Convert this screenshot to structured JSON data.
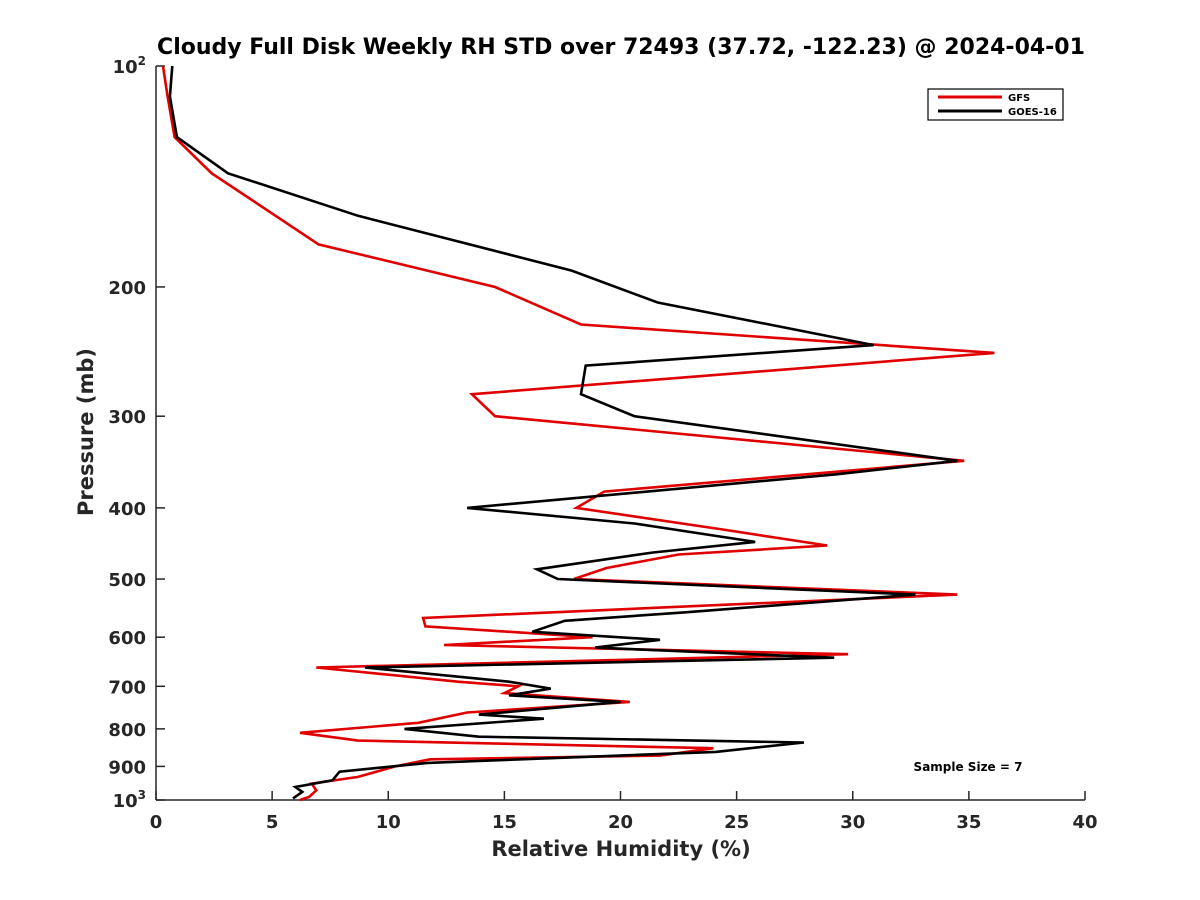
{
  "chart_data": {
    "type": "line",
    "title": "Cloudy Full Disk Weekly RH STD over 72493 (37.72, -122.23) @ 2024-04-01",
    "xlabel": "Relative Humidity (%)",
    "ylabel": "Pressure (mb)",
    "xlim": [
      0,
      40
    ],
    "ylim": [
      100,
      1000
    ],
    "yscale": "log",
    "y_reversed": true,
    "grid": false,
    "legend_position": "top-right",
    "annotation": "Sample Size = 7",
    "x_ticks": [
      {
        "value": 0,
        "label": "0"
      },
      {
        "value": 5,
        "label": "5"
      },
      {
        "value": 10,
        "label": "10"
      },
      {
        "value": 15,
        "label": "15"
      },
      {
        "value": 20,
        "label": "20"
      },
      {
        "value": 25,
        "label": "25"
      },
      {
        "value": 30,
        "label": "30"
      },
      {
        "value": 35,
        "label": "35"
      },
      {
        "value": 40,
        "label": "40"
      }
    ],
    "y_ticks": [
      {
        "value": 100,
        "base": "10",
        "sup": "2"
      },
      {
        "value": 200,
        "base": "200",
        "sup": ""
      },
      {
        "value": 300,
        "base": "300",
        "sup": ""
      },
      {
        "value": 400,
        "base": "400",
        "sup": ""
      },
      {
        "value": 500,
        "base": "500",
        "sup": ""
      },
      {
        "value": 600,
        "base": "600",
        "sup": ""
      },
      {
        "value": 700,
        "base": "700",
        "sup": ""
      },
      {
        "value": 800,
        "base": "800",
        "sup": ""
      },
      {
        "value": 900,
        "base": "900",
        "sup": ""
      },
      {
        "value": 1000,
        "base": "10",
        "sup": "3"
      }
    ],
    "series": [
      {
        "name": "GFS",
        "color": "#e00000",
        "points": [
          [
            0.3,
            100
          ],
          [
            0.5,
            110
          ],
          [
            0.8,
            125
          ],
          [
            2.4,
            140
          ],
          [
            7.0,
            175
          ],
          [
            14.6,
            200
          ],
          [
            18.3,
            225
          ],
          [
            36.1,
            246
          ],
          [
            13.6,
            280
          ],
          [
            14.6,
            300
          ],
          [
            34.8,
            345
          ],
          [
            19.3,
            380
          ],
          [
            18.1,
            400
          ],
          [
            24.4,
            428
          ],
          [
            28.9,
            450
          ],
          [
            22.5,
            463
          ],
          [
            19.4,
            483
          ],
          [
            18.0,
            500
          ],
          [
            34.5,
            525
          ],
          [
            11.5,
            565
          ],
          [
            11.6,
            580
          ],
          [
            18.8,
            600
          ],
          [
            12.4,
            615
          ],
          [
            29.8,
            633
          ],
          [
            6.9,
            660
          ],
          [
            13.0,
            690
          ],
          [
            15.6,
            700
          ],
          [
            15.0,
            715
          ],
          [
            20.4,
            735
          ],
          [
            13.4,
            760
          ],
          [
            11.3,
            785
          ],
          [
            6.2,
            810
          ],
          [
            8.7,
            830
          ],
          [
            24.0,
            850
          ],
          [
            21.7,
            870
          ],
          [
            11.8,
            880
          ],
          [
            10.3,
            900
          ],
          [
            8.7,
            930
          ],
          [
            6.7,
            950
          ],
          [
            6.9,
            970
          ],
          [
            6.6,
            990
          ],
          [
            6.2,
            1000
          ]
        ]
      },
      {
        "name": "GOES-16",
        "color": "#000000",
        "points": [
          [
            0.7,
            100
          ],
          [
            0.6,
            110
          ],
          [
            0.9,
            125
          ],
          [
            3.1,
            140
          ],
          [
            8.7,
            160
          ],
          [
            17.9,
            190
          ],
          [
            21.6,
            210
          ],
          [
            30.9,
            240
          ],
          [
            18.5,
            256
          ],
          [
            18.3,
            280
          ],
          [
            20.6,
            300
          ],
          [
            34.5,
            345
          ],
          [
            29.3,
            360
          ],
          [
            13.4,
            400
          ],
          [
            20.6,
            420
          ],
          [
            25.8,
            445
          ],
          [
            21.4,
            460
          ],
          [
            16.4,
            485
          ],
          [
            17.3,
            500
          ],
          [
            32.7,
            525
          ],
          [
            22.8,
            555
          ],
          [
            17.6,
            570
          ],
          [
            16.2,
            590
          ],
          [
            21.7,
            605
          ],
          [
            18.9,
            620
          ],
          [
            29.2,
            640
          ],
          [
            9.0,
            660
          ],
          [
            15.2,
            690
          ],
          [
            17.0,
            705
          ],
          [
            15.2,
            720
          ],
          [
            20.0,
            735
          ],
          [
            13.9,
            765
          ],
          [
            16.7,
            775
          ],
          [
            10.7,
            800
          ],
          [
            13.9,
            820
          ],
          [
            27.9,
            835
          ],
          [
            24.1,
            860
          ],
          [
            11.7,
            890
          ],
          [
            7.9,
            915
          ],
          [
            7.6,
            940
          ],
          [
            6.0,
            960
          ],
          [
            6.3,
            975
          ],
          [
            5.9,
            995
          ]
        ]
      }
    ]
  }
}
